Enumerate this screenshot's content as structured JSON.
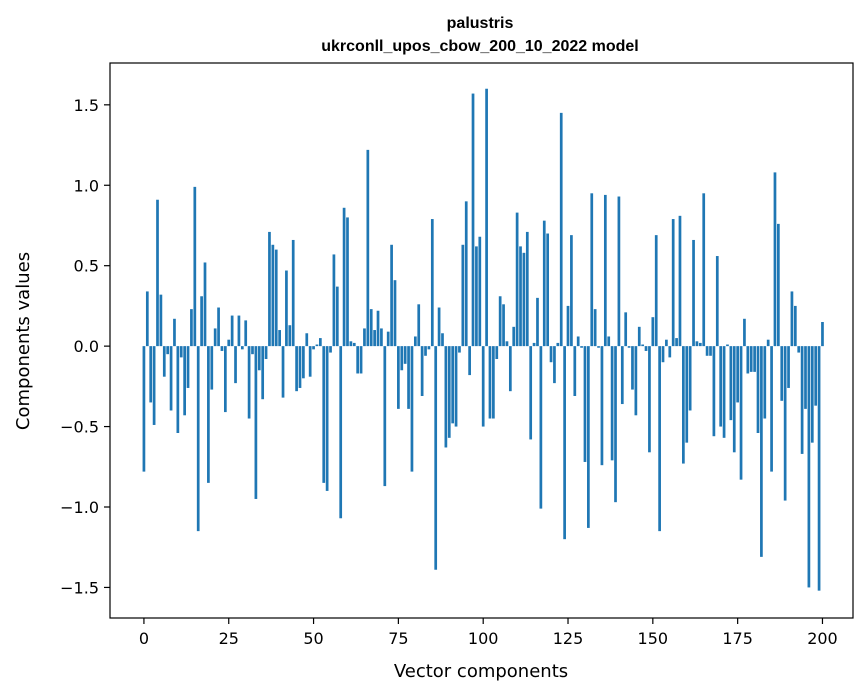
{
  "chart_data": {
    "type": "bar",
    "title": "palustris",
    "subtitle": "ukrconll_upos_cbow_200_10_2022 model",
    "xlabel": "Vector components",
    "ylabel": "Components values",
    "xlim": [
      -10,
      209
    ],
    "ylim": [
      -1.69,
      1.76
    ],
    "xticks": [
      0,
      25,
      50,
      75,
      100,
      125,
      150,
      175,
      200
    ],
    "yticks": [
      1.5,
      1.0,
      0.5,
      0.0,
      -0.5,
      -1.0,
      -1.5
    ],
    "ytick_labels": [
      "1.5",
      "1.0",
      "0.5",
      "0.0",
      "−0.5",
      "−1.0",
      "−1.5"
    ],
    "bar_color": "#1f77b4",
    "grid": false,
    "values": [
      -0.78,
      0.34,
      -0.35,
      -0.49,
      0.91,
      0.32,
      -0.19,
      -0.05,
      -0.4,
      0.17,
      -0.54,
      -0.07,
      -0.43,
      -0.26,
      0.23,
      0.99,
      -1.15,
      0.31,
      0.52,
      -0.85,
      -0.27,
      0.11,
      0.24,
      -0.03,
      -0.41,
      0.04,
      0.19,
      -0.23,
      0.19,
      -0.02,
      0.16,
      -0.45,
      -0.05,
      -0.95,
      -0.15,
      -0.33,
      -0.08,
      0.71,
      0.63,
      0.6,
      0.1,
      -0.32,
      0.47,
      0.13,
      0.66,
      -0.28,
      -0.26,
      -0.2,
      0.08,
      -0.19,
      -0.02,
      0.01,
      0.05,
      -0.85,
      -0.9,
      -0.04,
      0.57,
      0.37,
      -1.07,
      0.86,
      0.8,
      0.03,
      0.02,
      -0.17,
      -0.17,
      0.11,
      1.22,
      0.23,
      0.1,
      0.22,
      0.11,
      -0.87,
      0.09,
      0.63,
      0.41,
      -0.39,
      -0.15,
      -0.11,
      -0.39,
      -0.78,
      0.06,
      0.26,
      -0.31,
      -0.06,
      -0.02,
      0.79,
      -1.39,
      0.24,
      0.08,
      -0.63,
      -0.57,
      -0.48,
      -0.5,
      -0.04,
      0.63,
      0.9,
      -0.18,
      1.57,
      0.62,
      0.68,
      -0.5,
      1.6,
      -0.45,
      -0.45,
      -0.08,
      0.31,
      0.26,
      0.03,
      -0.28,
      0.12,
      0.83,
      0.62,
      0.58,
      0.71,
      -0.58,
      0.02,
      0.3,
      -1.01,
      0.78,
      0.7,
      -0.1,
      -0.23,
      0.02,
      1.45,
      -1.2,
      0.25,
      0.69,
      -0.31,
      0.06,
      -0.01,
      -0.72,
      -1.13,
      0.95,
      0.23,
      -0.01,
      -0.74,
      0.94,
      0.06,
      -0.71,
      -0.97,
      0.93,
      -0.36,
      0.21,
      -0.01,
      -0.27,
      -0.43,
      0.12,
      0.01,
      -0.03,
      -0.66,
      0.18,
      0.69,
      -1.15,
      -0.1,
      0.04,
      -0.07,
      0.79,
      0.05,
      0.81,
      -0.73,
      -0.6,
      -0.4,
      0.66,
      0.03,
      0.02,
      0.95,
      -0.06,
      -0.06,
      -0.56,
      0.56,
      -0.5,
      -0.57,
      0.01,
      -0.46,
      -0.66,
      -0.35,
      -0.83,
      0.17,
      -0.17,
      -0.16,
      -0.16,
      -0.54,
      -1.31,
      -0.45,
      0.04,
      -0.78,
      1.08,
      0.76,
      -0.34,
      -0.96,
      -0.26,
      0.34,
      0.25,
      -0.04,
      -0.67,
      -0.39,
      -1.5,
      -0.6,
      -0.37,
      -1.52,
      0.15
    ]
  }
}
